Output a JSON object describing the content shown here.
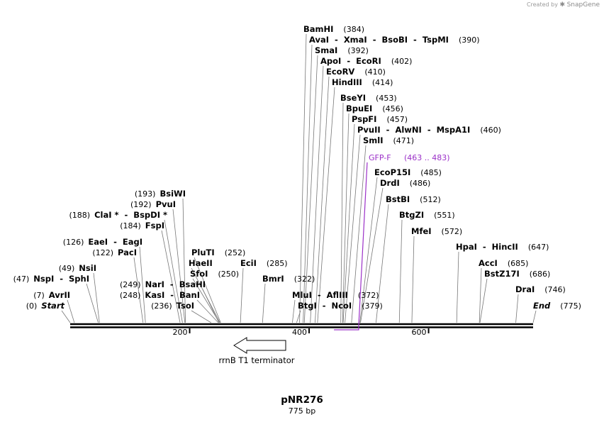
{
  "plasmid": {
    "name": "pNR276",
    "length_label": "775 bp",
    "length": 775
  },
  "watermark": {
    "created_by": "Created by",
    "brand": "SnapGene"
  },
  "axis": {
    "ticks": [
      {
        "value": 200,
        "label": "200"
      },
      {
        "value": 400,
        "label": "400"
      },
      {
        "value": 600,
        "label": "600"
      }
    ]
  },
  "feature": {
    "name": "rrnB T1 terminator",
    "direction": "reverse",
    "start": 269,
    "end": 357
  },
  "primer": {
    "name": "GFP-F",
    "range": "(463 .. 483)",
    "start": 463,
    "end": 483,
    "color": "#9b30c8"
  },
  "sites": [
    {
      "name": "BamHI",
      "pos": "(384)",
      "x": 384
    },
    {
      "name": "AvaI  -  XmaI  -  BsoBI  -  TspMI",
      "pos": "(390)",
      "x": 390
    },
    {
      "name": "SmaI",
      "pos": "(392)",
      "x": 392
    },
    {
      "name": "ApoI  -  EcoRI",
      "pos": "(402)",
      "x": 402
    },
    {
      "name": "EcoRV",
      "pos": "(410)",
      "x": 410
    },
    {
      "name": "HindIII",
      "pos": "(414)",
      "x": 414
    },
    {
      "name": "BseYI",
      "pos": "(453)",
      "x": 453
    },
    {
      "name": "BpuEI",
      "pos": "(456)",
      "x": 456
    },
    {
      "name": "PspFI",
      "pos": "(457)",
      "x": 457
    },
    {
      "name": "PvuII  -  AlwNI  -  MspA1I",
      "pos": "(460)",
      "x": 460
    },
    {
      "name": "SmlI",
      "pos": "(471)",
      "x": 471
    },
    {
      "name": "EcoP15I",
      "pos": "(485)",
      "x": 485
    },
    {
      "name": "DrdI",
      "pos": "(486)",
      "x": 486
    },
    {
      "name": "BstBI",
      "pos": "(512)",
      "x": 512
    },
    {
      "name": "BtgZI",
      "pos": "(551)",
      "x": 551
    },
    {
      "name": "MfeI",
      "pos": "(572)",
      "x": 572
    },
    {
      "name": "HpaI  -  HincII",
      "pos": "(647)",
      "x": 647
    },
    {
      "name": "AccI",
      "pos": "(685)",
      "x": 685
    },
    {
      "name": "BstZ17I",
      "pos": "(686)",
      "x": 686
    },
    {
      "name": "DraI",
      "pos": "(746)",
      "x": 746
    },
    {
      "name": "End",
      "pos": "(775)",
      "x": 775,
      "italic": true
    },
    {
      "name": "BsiWI",
      "pos": "(193)",
      "x": 193
    },
    {
      "name": "PvuI",
      "pos": "(192)",
      "x": 192
    },
    {
      "name": "ClaI *  -  BspDI *",
      "pos": "(188)",
      "x": 188
    },
    {
      "name": "FspI",
      "pos": "(184)",
      "x": 184
    },
    {
      "name": "EaeI  -  EagI",
      "pos": "(126)",
      "x": 126
    },
    {
      "name": "PacI",
      "pos": "(122)",
      "x": 122
    },
    {
      "name": "PluTI",
      "pos": "(252)",
      "x": 252
    },
    {
      "name": "HaeII",
      "pos": "",
      "x": 251
    },
    {
      "name": "SfoI",
      "pos": "(250)",
      "x": 250
    },
    {
      "name": "NarI  -  BsaHI",
      "pos": "(249)",
      "x": 249
    },
    {
      "name": "KasI  -  BanI",
      "pos": "(248)",
      "x": 248
    },
    {
      "name": "TsoI",
      "pos": "(236)",
      "x": 236
    },
    {
      "name": "NsiI",
      "pos": "(49)",
      "x": 49
    },
    {
      "name": "NspI  -  SphI",
      "pos": "(47)",
      "x": 47
    },
    {
      "name": "AvrII",
      "pos": "(7)",
      "x": 7
    },
    {
      "name": "Start",
      "pos": "(0)",
      "x": 0,
      "italic": true
    },
    {
      "name": "EciI",
      "pos": "(285)",
      "x": 285
    },
    {
      "name": "BmrI",
      "pos": "(322)",
      "x": 322
    },
    {
      "name": "MluI  -  AflIII",
      "pos": "(372)",
      "x": 372
    },
    {
      "name": "BtgI  -  NcoI",
      "pos": "(379)",
      "x": 379
    }
  ]
}
